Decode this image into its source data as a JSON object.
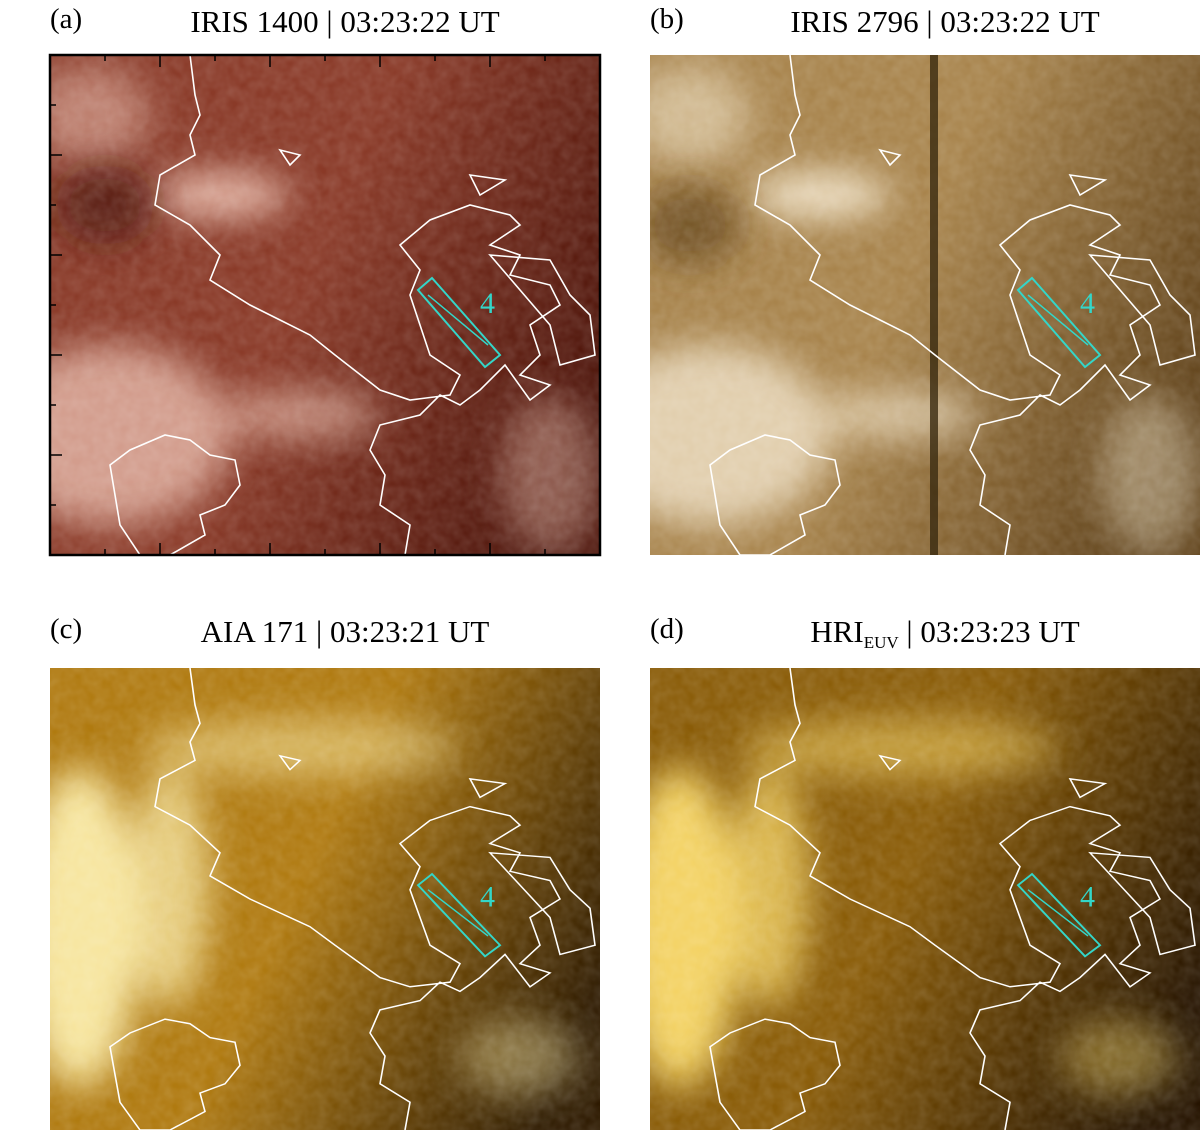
{
  "panels": [
    {
      "label": "(a)",
      "title": "IRIS 1400 | 03:23:22 UT",
      "box_label": "4"
    },
    {
      "label": "(b)",
      "title": "IRIS 2796 | 03:23:22 UT",
      "box_label": "4"
    },
    {
      "label": "(c)",
      "title": "AIA 171 | 03:23:21 UT",
      "box_label": "4"
    },
    {
      "label": "(d)",
      "title": "HRI",
      "title_subscript": "EUV",
      "title_suffix": " | 03:23:23 UT",
      "box_label": "4"
    }
  ]
}
